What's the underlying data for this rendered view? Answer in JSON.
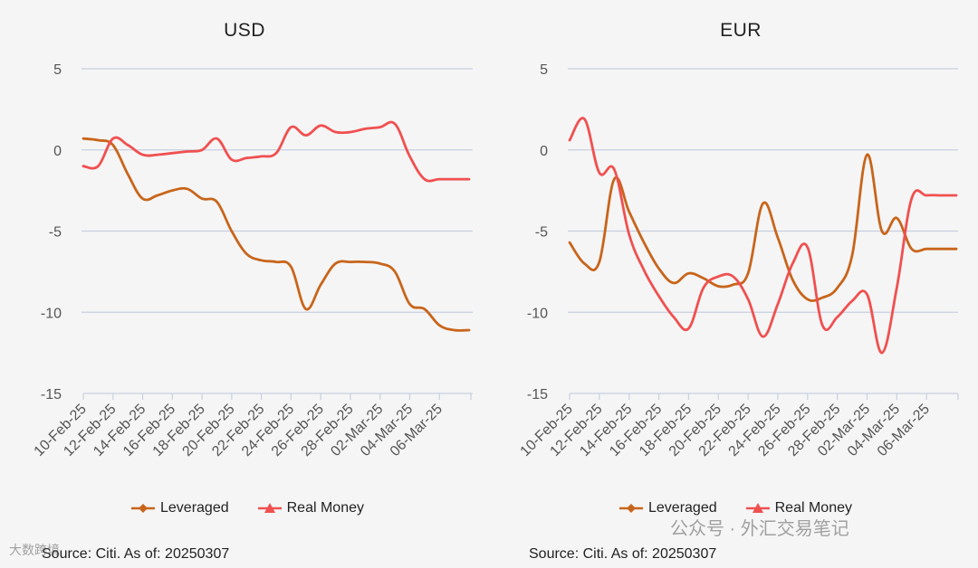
{
  "chart_data": [
    {
      "type": "line",
      "title": "USD",
      "ylim": [
        -15,
        5
      ],
      "yticks": [
        5,
        0,
        -5,
        -10,
        -15
      ],
      "ytick_labels": [
        "5",
        "0",
        "-5",
        "-10",
        "-15"
      ],
      "xlabels": [
        "10-Feb-25",
        "12-Feb-25",
        "14-Feb-25",
        "16-Feb-25",
        "18-Feb-25",
        "20-Feb-25",
        "22-Feb-25",
        "24-Feb-25",
        "26-Feb-25",
        "28-Feb-25",
        "02-Mar-25",
        "04-Mar-25",
        "06-Mar-25"
      ],
      "grid": true,
      "legend_position": "bottom",
      "series": [
        {
          "name": "Leveraged",
          "color": "#c8651b",
          "x": [
            0,
            1,
            2,
            3,
            4,
            5,
            6,
            7,
            8,
            9,
            10,
            11,
            12,
            13,
            14,
            15,
            16,
            17,
            18,
            19,
            20,
            21,
            22,
            23,
            24,
            25,
            26
          ],
          "y": [
            0.7,
            0.6,
            0.3,
            -1.5,
            -3.0,
            -2.8,
            -2.5,
            -2.4,
            -3.0,
            -3.2,
            -5.0,
            -6.4,
            -6.8,
            -6.9,
            -7.2,
            -9.8,
            -8.3,
            -7.0,
            -6.9,
            -6.9,
            -7.0,
            -7.5,
            -9.5,
            -9.8,
            -10.8,
            -11.1,
            -11.1
          ]
        },
        {
          "name": "Real Money",
          "color": "#f05050",
          "x": [
            0,
            1,
            2,
            3,
            4,
            5,
            6,
            7,
            8,
            9,
            10,
            11,
            12,
            13,
            14,
            15,
            16,
            17,
            18,
            19,
            20,
            21,
            22,
            23,
            24,
            25,
            26
          ],
          "y": [
            -1.0,
            -1.0,
            0.7,
            0.3,
            -0.3,
            -0.3,
            -0.2,
            -0.1,
            0.0,
            0.7,
            -0.6,
            -0.5,
            -0.4,
            -0.2,
            1.4,
            0.9,
            1.5,
            1.1,
            1.1,
            1.3,
            1.4,
            1.6,
            -0.4,
            -1.8,
            -1.8,
            -1.8,
            -1.8
          ]
        }
      ]
    },
    {
      "type": "line",
      "title": "EUR",
      "ylim": [
        -15,
        5
      ],
      "yticks": [
        5,
        0,
        -5,
        -10,
        -15
      ],
      "ytick_labels": [
        "5",
        "0",
        "-5",
        "-10",
        "-15"
      ],
      "xlabels": [
        "10-Feb-25",
        "12-Feb-25",
        "14-Feb-25",
        "16-Feb-25",
        "18-Feb-25",
        "20-Feb-25",
        "22-Feb-25",
        "24-Feb-25",
        "26-Feb-25",
        "28-Feb-25",
        "02-Mar-25",
        "04-Mar-25",
        "06-Mar-25"
      ],
      "grid": true,
      "legend_position": "bottom",
      "series": [
        {
          "name": "Leveraged",
          "color": "#c8651b",
          "x": [
            0,
            1,
            2,
            3,
            4,
            5,
            6,
            7,
            8,
            9,
            10,
            11,
            12,
            13,
            14,
            15,
            16,
            17,
            18,
            19,
            20,
            21,
            22,
            23,
            24,
            25,
            26
          ],
          "y": [
            -5.7,
            -7.0,
            -6.9,
            -1.8,
            -3.8,
            -5.7,
            -7.3,
            -8.2,
            -7.6,
            -7.9,
            -8.4,
            -8.3,
            -7.6,
            -3.3,
            -5.4,
            -8.0,
            -9.2,
            -9.1,
            -8.5,
            -6.5,
            -0.3,
            -5.0,
            -4.2,
            -6.1,
            -6.1,
            -6.1,
            -6.1
          ]
        },
        {
          "name": "Real Money",
          "color": "#f05050",
          "x": [
            0,
            1,
            2,
            3,
            4,
            5,
            6,
            7,
            8,
            9,
            10,
            11,
            12,
            13,
            14,
            15,
            16,
            17,
            18,
            19,
            20,
            21,
            22,
            23,
            24,
            25,
            26
          ],
          "y": [
            0.6,
            1.9,
            -1.4,
            -1.2,
            -5.2,
            -7.4,
            -9.0,
            -10.3,
            -11.0,
            -8.5,
            -7.8,
            -7.8,
            -9.2,
            -11.5,
            -9.5,
            -7.0,
            -6.0,
            -10.8,
            -10.3,
            -9.3,
            -8.9,
            -12.5,
            -8.5,
            -3.0,
            -2.8,
            -2.8,
            -2.8
          ]
        }
      ]
    }
  ],
  "legend": {
    "leveraged": "Leveraged",
    "real_money": "Real Money"
  },
  "source_left": "Source: Citi. As of: 20250307",
  "source_right": "Source: Citi. As of: 20250307",
  "watermark_left": "大数跨境",
  "watermark_right": "公众号 · 外汇交易笔记"
}
